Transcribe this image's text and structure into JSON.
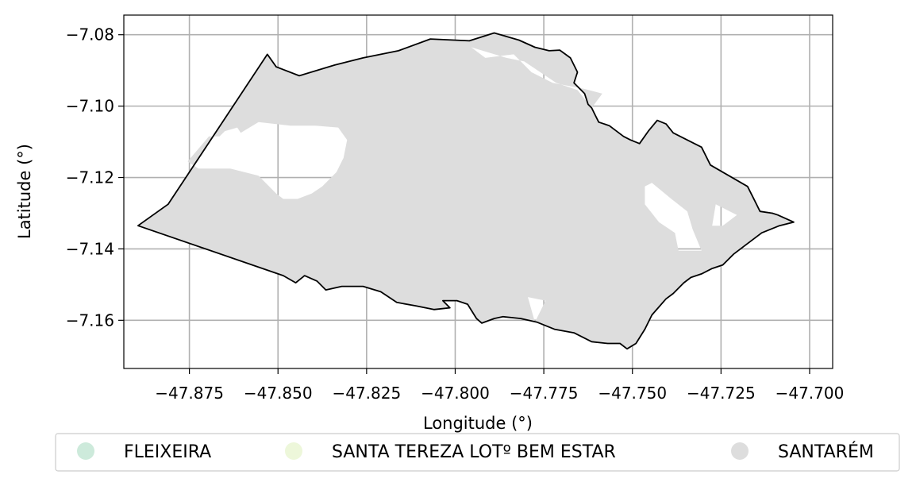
{
  "map": {
    "xlabel": "Longitude (°)",
    "ylabel": "Latitude (°)",
    "xlim": [
      -47.8935,
      -47.6935
    ],
    "ylim": [
      -7.1735,
      -7.0745
    ],
    "x_ticks": [
      {
        "value": -47.875,
        "label": "−47.875"
      },
      {
        "value": -47.85,
        "label": "−47.850"
      },
      {
        "value": -47.825,
        "label": "−47.825"
      },
      {
        "value": -47.8,
        "label": "−47.800"
      },
      {
        "value": -47.775,
        "label": "−47.775"
      },
      {
        "value": -47.75,
        "label": "−47.750"
      },
      {
        "value": -47.725,
        "label": "−47.725"
      },
      {
        "value": -47.7,
        "label": "−47.700"
      }
    ],
    "y_ticks": [
      {
        "value": -7.08,
        "label": "−7.08"
      },
      {
        "value": -7.1,
        "label": "−7.10"
      },
      {
        "value": -7.12,
        "label": "−7.12"
      },
      {
        "value": -7.14,
        "label": "−7.14"
      },
      {
        "value": -7.16,
        "label": "−7.16"
      }
    ],
    "grid": true,
    "colors": {
      "grid": "#b0b0b0",
      "fill": "#dddddd",
      "outline": "#000000"
    },
    "legend": {
      "placement": "bottom",
      "items": [
        {
          "label": "FLEIXEIRA",
          "color": "#cdeadb"
        },
        {
          "label": "SANTA TEREZA LOTº BEM ESTAR",
          "color": "#edf7da"
        },
        {
          "label": "SANTARÉM",
          "color": "#dddddd"
        }
      ]
    },
    "region_name": "SANTARÉM",
    "boundary": [
      [
        -47.8895,
        -7.1335
      ],
      [
        -47.881,
        -7.1275
      ],
      [
        -47.853,
        -7.0855
      ],
      [
        -47.8505,
        -7.089
      ],
      [
        -47.844,
        -7.0915
      ],
      [
        -47.834,
        -7.0885
      ],
      [
        -47.826,
        -7.0865
      ],
      [
        -47.816,
        -7.0845
      ],
      [
        -47.807,
        -7.0812
      ],
      [
        -47.796,
        -7.0817
      ],
      [
        -47.789,
        -7.0795
      ],
      [
        -47.782,
        -7.0815
      ],
      [
        -47.7775,
        -7.0835
      ],
      [
        -47.7735,
        -7.0845
      ],
      [
        -47.7705,
        -7.0843
      ],
      [
        -47.7675,
        -7.0865
      ],
      [
        -47.7655,
        -7.0905
      ],
      [
        -47.7665,
        -7.0935
      ],
      [
        -47.7635,
        -7.0965
      ],
      [
        -47.7625,
        -7.0995
      ],
      [
        -47.7615,
        -7.1005
      ],
      [
        -47.7605,
        -7.1025
      ],
      [
        -47.7595,
        -7.1045
      ],
      [
        -47.7565,
        -7.1055
      ],
      [
        -47.7525,
        -7.1085
      ],
      [
        -47.7505,
        -7.1095
      ],
      [
        -47.748,
        -7.1105
      ],
      [
        -47.7455,
        -7.107
      ],
      [
        -47.743,
        -7.104
      ],
      [
        -47.7405,
        -7.105
      ],
      [
        -47.7385,
        -7.1075
      ],
      [
        -47.7345,
        -7.1095
      ],
      [
        -47.7305,
        -7.1115
      ],
      [
        -47.728,
        -7.1165
      ],
      [
        -47.7245,
        -7.1185
      ],
      [
        -47.721,
        -7.1205
      ],
      [
        -47.7175,
        -7.1225
      ],
      [
        -47.7155,
        -7.1265
      ],
      [
        -47.714,
        -7.1295
      ],
      [
        -47.7105,
        -7.13
      ],
      [
        -47.709,
        -7.1305
      ],
      [
        -47.7045,
        -7.1325
      ],
      [
        -47.7085,
        -7.1335
      ],
      [
        -47.7135,
        -7.1355
      ],
      [
        -47.7175,
        -7.1385
      ],
      [
        -47.7215,
        -7.1415
      ],
      [
        -47.7245,
        -7.1445
      ],
      [
        -47.7275,
        -7.1455
      ],
      [
        -47.7305,
        -7.147
      ],
      [
        -47.7335,
        -7.148
      ],
      [
        -47.7355,
        -7.1495
      ],
      [
        -47.7385,
        -7.1525
      ],
      [
        -47.7405,
        -7.154
      ],
      [
        -47.7445,
        -7.1585
      ],
      [
        -47.7465,
        -7.1625
      ],
      [
        -47.749,
        -7.1665
      ],
      [
        -47.7515,
        -7.168
      ],
      [
        -47.7535,
        -7.1665
      ],
      [
        -47.757,
        -7.1665
      ],
      [
        -47.7615,
        -7.166
      ],
      [
        -47.7665,
        -7.1635
      ],
      [
        -47.772,
        -7.1625
      ],
      [
        -47.777,
        -7.1605
      ],
      [
        -47.7815,
        -7.1595
      ],
      [
        -47.7865,
        -7.159
      ],
      [
        -47.789,
        -7.1595
      ],
      [
        -47.7925,
        -7.1608
      ],
      [
        -47.794,
        -7.1595
      ],
      [
        -47.7965,
        -7.1555
      ],
      [
        -47.7995,
        -7.1545
      ],
      [
        -47.8035,
        -7.1545
      ],
      [
        -47.8015,
        -7.1565
      ],
      [
        -47.806,
        -7.157
      ],
      [
        -47.811,
        -7.156
      ],
      [
        -47.8165,
        -7.155
      ],
      [
        -47.821,
        -7.152
      ],
      [
        -47.826,
        -7.1505
      ],
      [
        -47.832,
        -7.1505
      ],
      [
        -47.8365,
        -7.1515
      ],
      [
        -47.839,
        -7.149
      ],
      [
        -47.8425,
        -7.1475
      ],
      [
        -47.845,
        -7.1495
      ],
      [
        -47.8485,
        -7.1475
      ],
      [
        -47.8895,
        -7.1335
      ]
    ],
    "holes": [
      [
        [
          -47.8755,
          -7.1155
        ],
        [
          -47.8695,
          -7.1085
        ],
        [
          -47.8665,
          -7.1085
        ],
        [
          -47.865,
          -7.107
        ],
        [
          -47.8615,
          -7.106
        ],
        [
          -47.8605,
          -7.1075
        ],
        [
          -47.8555,
          -7.1045
        ],
        [
          -47.8465,
          -7.1055
        ],
        [
          -47.8395,
          -7.1055
        ],
        [
          -47.833,
          -7.106
        ],
        [
          -47.8305,
          -7.1095
        ],
        [
          -47.8315,
          -7.1145
        ],
        [
          -47.8335,
          -7.1185
        ],
        [
          -47.8375,
          -7.1225
        ],
        [
          -47.8405,
          -7.1245
        ],
        [
          -47.8445,
          -7.126
        ],
        [
          -47.8485,
          -7.126
        ],
        [
          -47.8505,
          -7.1245
        ],
        [
          -47.8555,
          -7.1195
        ],
        [
          -47.8635,
          -7.1175
        ],
        [
          -47.8725,
          -7.1175
        ],
        [
          -47.8755,
          -7.1155
        ]
      ],
      [
        [
          -47.7955,
          -7.0835
        ],
        [
          -47.7915,
          -7.0865
        ],
        [
          -47.7835,
          -7.0855
        ],
        [
          -47.7785,
          -7.0905
        ],
        [
          -47.7725,
          -7.0935
        ],
        [
          -47.7635,
          -7.0952
        ],
        [
          -47.7585,
          -7.0965
        ],
        [
          -47.7615,
          -7.1005
        ],
        [
          -47.7655,
          -7.0955
        ],
        [
          -47.7715,
          -7.0935
        ],
        [
          -47.7775,
          -7.0895
        ],
        [
          -47.7805,
          -7.0875
        ],
        [
          -47.7855,
          -7.0865
        ],
        [
          -47.7955,
          -7.0835
        ]
      ],
      [
        [
          -47.7465,
          -7.1225
        ],
        [
          -47.7445,
          -7.1215
        ],
        [
          -47.739,
          -7.126
        ],
        [
          -47.7345,
          -7.1295
        ],
        [
          -47.733,
          -7.1345
        ],
        [
          -47.7305,
          -7.1405
        ],
        [
          -47.737,
          -7.1405
        ],
        [
          -47.738,
          -7.1355
        ],
        [
          -47.7425,
          -7.1325
        ],
        [
          -47.7465,
          -7.1275
        ],
        [
          -47.7465,
          -7.1225
        ]
      ],
      [
        [
          -47.7265,
          -7.1275
        ],
        [
          -47.7205,
          -7.1305
        ],
        [
          -47.7245,
          -7.1335
        ],
        [
          -47.7275,
          -7.1335
        ],
        [
          -47.7265,
          -7.1275
        ]
      ],
      [
        [
          -47.7795,
          -7.1535
        ],
        [
          -47.7745,
          -7.1545
        ],
        [
          -47.7765,
          -7.1585
        ],
        [
          -47.7775,
          -7.1605
        ],
        [
          -47.7795,
          -7.1535
        ]
      ]
    ]
  }
}
